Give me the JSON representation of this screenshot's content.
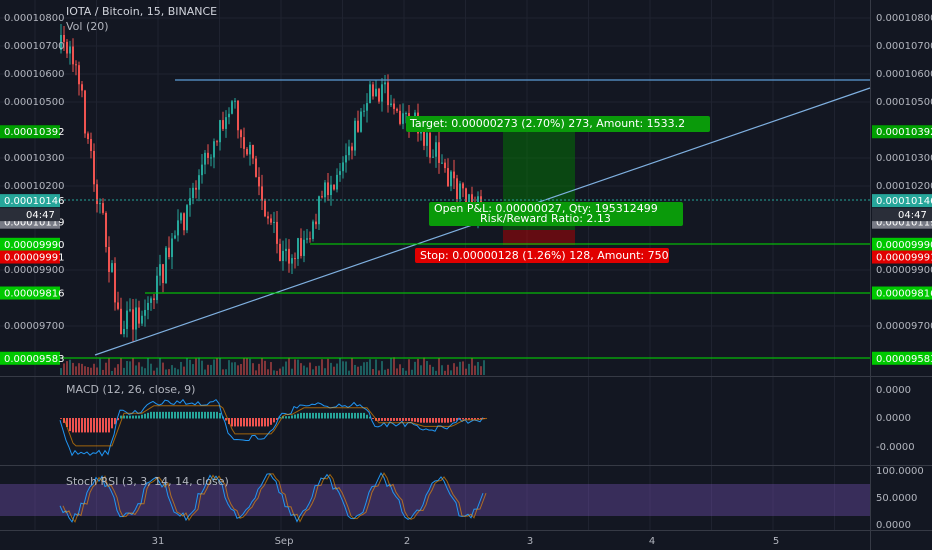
{
  "header": {
    "symbol": "IOTA / Bitcoin, 15, BINANCE",
    "volume": "Vol (20)"
  },
  "price_axis": {
    "ticks": [
      "0.00010800",
      "0.00010700",
      "0.00010600",
      "0.00010500",
      "0.00010300",
      "0.00010200",
      "0.00009900",
      "0.00009700"
    ],
    "markers": [
      {
        "label": "0.00010392",
        "color": "#00a000"
      },
      {
        "label": "0.00010146",
        "color": "#26a69a"
      },
      {
        "label": "0.00010119",
        "color": "#787b86"
      },
      {
        "label": "0.00009990",
        "color": "#00c800"
      },
      {
        "label": "0.00009991",
        "color": "#e00000"
      },
      {
        "label": "0.00009816",
        "color": "#00c800"
      },
      {
        "label": "0.00009583",
        "color": "#00c800"
      }
    ],
    "countdown": "04:47"
  },
  "position": {
    "target": "Target: 0.00000273 (2.70%) 273, Amount: 1533.2",
    "open": "Open P&L: 0.00000027, Qty: 195312499",
    "ratio": "Risk/Reward Ratio: 2.13",
    "stop": "Stop: 0.00000128 (1.26%) 128, Amount: 750"
  },
  "macd": {
    "label": "MACD (12, 26, close, 9)",
    "ticks": [
      "0.0000",
      "0.0000",
      "-0.0000"
    ]
  },
  "stoch": {
    "label": "Stoch RSI (3, 3, 14, 14, close)",
    "ticks": [
      "100.0000",
      "50.0000",
      "0.0000"
    ]
  },
  "time_axis": [
    "31",
    "Sep",
    "2",
    "3",
    "4",
    "5"
  ]
}
